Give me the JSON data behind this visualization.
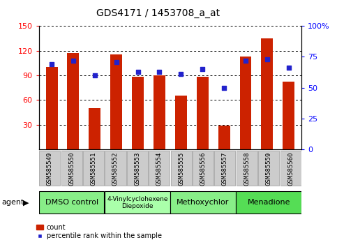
{
  "title": "GDS4171 / 1453708_a_at",
  "samples": [
    "GSM585549",
    "GSM585550",
    "GSM585551",
    "GSM585552",
    "GSM585553",
    "GSM585554",
    "GSM585555",
    "GSM585556",
    "GSM585557",
    "GSM585558",
    "GSM585559",
    "GSM585560"
  ],
  "counts": [
    100,
    117,
    50,
    115,
    88,
    90,
    65,
    88,
    29,
    113,
    135,
    82
  ],
  "percentiles": [
    69,
    72,
    60,
    71,
    63,
    63,
    61,
    65,
    50,
    72,
    73,
    66
  ],
  "ylim_left": [
    0,
    150
  ],
  "ylim_right": [
    0,
    100
  ],
  "yticks_left": [
    30,
    60,
    90,
    120,
    150
  ],
  "yticks_right": [
    0,
    25,
    50,
    75,
    100
  ],
  "ytick_labels_right": [
    "0",
    "25",
    "50",
    "75",
    "100%"
  ],
  "bar_color": "#cc2200",
  "dot_color": "#2222cc",
  "agent_groups": [
    {
      "label": "DMSO control",
      "start": 0,
      "end": 3,
      "color": "#88ee88"
    },
    {
      "label": "4-Vinylcyclohexene\nDiepoxide",
      "start": 3,
      "end": 6,
      "color": "#aaffaa"
    },
    {
      "label": "Methoxychlor",
      "start": 6,
      "end": 9,
      "color": "#88ee88"
    },
    {
      "label": "Menadione",
      "start": 9,
      "end": 12,
      "color": "#55dd55"
    }
  ],
  "legend_count_label": "count",
  "legend_percentile_label": "percentile rank within the sample",
  "agent_label": "agent",
  "bar_width": 0.55,
  "tick_label_fontsize": 6.5,
  "title_fontsize": 10,
  "xtick_bg_color": "#cccccc"
}
